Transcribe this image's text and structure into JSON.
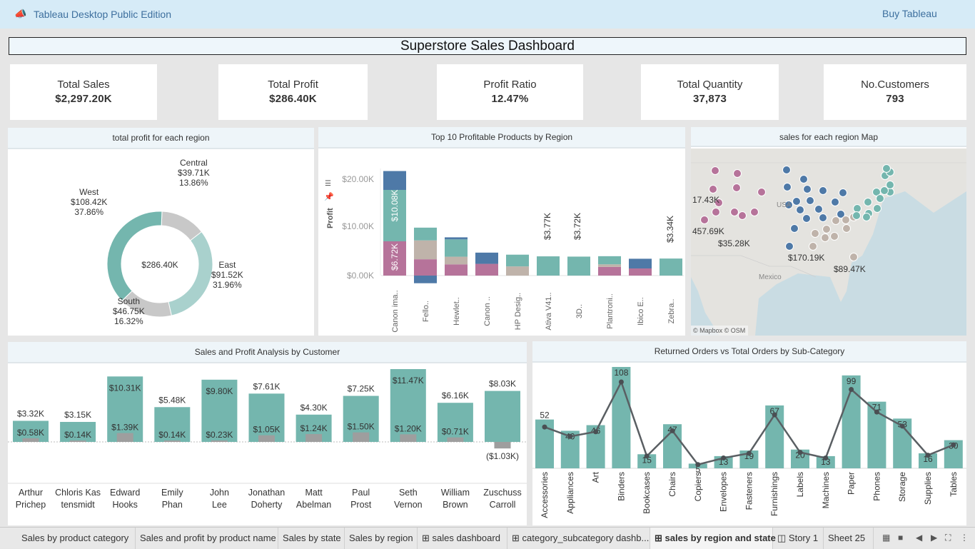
{
  "app": {
    "title": "Tableau Desktop Public Edition",
    "buy_label": "Buy Tableau"
  },
  "dashboard": {
    "title": "Superstore Sales Dashboard"
  },
  "kpis": [
    {
      "title": "Total Sales",
      "value": "$2,297.20K"
    },
    {
      "title": "Total Profit",
      "value": "$286.40K"
    },
    {
      "title": "Profit Ratio",
      "value": "12.47%"
    },
    {
      "title": "Total Quantity",
      "value": "37,873"
    },
    {
      "title": "No.Customers",
      "value": "793"
    }
  ],
  "panels": {
    "donut_title": "total profit for each region",
    "products_title": "Top 10 Profitable Products by Region",
    "map_title": "sales for each region Map",
    "customers_title": "Sales and Profit Analysis by Customer",
    "returns_title": "Returned Orders vs Total Orders by Sub-Category"
  },
  "donut": {
    "center": "$286.40K",
    "regions": [
      {
        "name": "Central",
        "value": "$39.71K",
        "pct": "13.86%"
      },
      {
        "name": "East",
        "value": "$91.52K",
        "pct": "31.96%"
      },
      {
        "name": "South",
        "value": "$46.75K",
        "pct": "16.32%"
      },
      {
        "name": "West",
        "value": "$108.42K",
        "pct": "37.86%"
      }
    ]
  },
  "products": {
    "y_axis": "Profit",
    "ticks": [
      "$20.00K",
      "$10.00K",
      "$0.00K"
    ],
    "names": [
      "Canon ima..",
      "Fello..",
      "Hewlet..",
      "Canon ..",
      "HP Desig..",
      "Ativa V41..",
      "3D..",
      "Plantroni..",
      "Ibico E..",
      "Zebra.."
    ],
    "labels": [
      "$10.08K",
      "$6.72K",
      "$3.77K",
      "$3.72K",
      "$3.34K"
    ]
  },
  "map": {
    "labels": [
      "17.43K",
      "457.69K",
      "$35.28K",
      "$170.19K",
      "$89.47K"
    ],
    "place_usa": "USA",
    "place_mexico": "Mexico",
    "credit": "© Mapbox © OSM"
  },
  "customers": {
    "names": [
      "Arthur Prichep",
      "Chloris Kas tensmidt",
      "Edward Hooks",
      "Emily Phan",
      "John Lee",
      "Jonathan Doherty",
      "Matt Abelman",
      "Paul Prost",
      "Seth Vernon",
      "William Brown",
      "Zuschuss Carroll"
    ],
    "sales_labels": [
      "$3.32K",
      "$3.15K",
      "$10.31K",
      "$5.48K",
      "$9.80K",
      "$7.61K",
      "$4.30K",
      "$7.25K",
      "$11.47K",
      "$6.16K",
      "$8.03K"
    ],
    "profit_labels": [
      "$0.58K",
      "$0.14K",
      "$1.39K",
      "$0.14K",
      "$0.23K",
      "$1.05K",
      "$1.24K",
      "$1.50K",
      "$1.20K",
      "$0.71K",
      "($1.03K)"
    ]
  },
  "returns": {
    "categories": [
      "Accessories",
      "Appliances",
      "Art",
      "Binders",
      "Bookcases",
      "Chairs",
      "Copiers",
      "Envelopes",
      "Fasteners",
      "Furnishings",
      "Labels",
      "Machines",
      "Paper",
      "Phones",
      "Storage",
      "Supplies",
      "Tables"
    ],
    "labels": [
      "52",
      "40",
      "46",
      "108",
      "15",
      "47",
      "5",
      "13",
      "19",
      "67",
      "20",
      "13",
      "99",
      "71",
      "53",
      "16",
      "30"
    ]
  },
  "tabs": [
    "Sales by product category",
    "Sales and profit by product name",
    "Sales by state",
    "Sales by region",
    "sales dashboard",
    "category_subcategory dashb...",
    "sales by region and state",
    "Story 1",
    "Sheet 25"
  ],
  "chart_data": [
    {
      "type": "pie",
      "title": "total profit for each region",
      "categories": [
        "Central",
        "East",
        "South",
        "West"
      ],
      "values": [
        39.71,
        91.52,
        46.75,
        108.42
      ],
      "percent": [
        13.86,
        31.96,
        16.32,
        37.86
      ],
      "total": 286.4,
      "unit": "$K"
    },
    {
      "type": "bar",
      "title": "Top 10 Profitable Products by Region",
      "ylabel": "Profit",
      "ylim": [
        -1.5,
        21
      ],
      "categories": [
        "Canon ima..",
        "Fello..",
        "Hewlet..",
        "Canon ..",
        "HP Desig..",
        "Ativa V41..",
        "3D..",
        "Plantroni..",
        "Ibico E..",
        "Zebra.."
      ],
      "series": [
        {
          "name": "Central",
          "color": "#b6739a",
          "values": [
            6.72,
            3.2,
            2.2,
            2.3,
            0,
            0,
            0,
            1.7,
            1.4,
            0
          ]
        },
        {
          "name": "South",
          "color": "#bfb3aa",
          "values": [
            0,
            3.7,
            1.5,
            0,
            1.8,
            0,
            0,
            0.5,
            0,
            0
          ]
        },
        {
          "name": "West",
          "color": "#74b6ae",
          "values": [
            10.08,
            2.5,
            3.4,
            0,
            2.3,
            3.77,
            3.72,
            1.6,
            0,
            3.34
          ]
        },
        {
          "name": "East",
          "color": "#4e79a7",
          "values": [
            3.7,
            -1.5,
            0.4,
            2.2,
            0,
            0,
            0,
            0,
            1.9,
            0
          ]
        }
      ]
    },
    {
      "type": "bar",
      "title": "Sales and Profit Analysis by Customer",
      "categories": [
        "Arthur Prichep",
        "Chloris Kas tensmidt",
        "Edward Hooks",
        "Emily Phan",
        "John Lee",
        "Jonathan Doherty",
        "Matt Abelman",
        "Paul Prost",
        "Seth Vernon",
        "William Brown",
        "Zuschuss Carroll"
      ],
      "series": [
        {
          "name": "Sales",
          "values": [
            3.32,
            3.15,
            10.31,
            5.48,
            9.8,
            7.61,
            4.3,
            7.25,
            11.47,
            6.16,
            8.03
          ]
        },
        {
          "name": "Profit",
          "values": [
            0.58,
            0.14,
            1.39,
            0.14,
            0.23,
            1.05,
            1.24,
            1.5,
            1.2,
            0.71,
            -1.03
          ]
        }
      ],
      "unit": "$K"
    },
    {
      "type": "bar",
      "title": "Returned Orders vs Total Orders by Sub-Category",
      "categories": [
        "Accessories",
        "Appliances",
        "Art",
        "Binders",
        "Bookcases",
        "Chairs",
        "Copiers",
        "Envelopes",
        "Fasteners",
        "Furnishings",
        "Labels",
        "Machines",
        "Paper",
        "Phones",
        "Storage",
        "Supplies",
        "Tables"
      ],
      "series": [
        {
          "name": "Total Orders",
          "values": [
            52,
            40,
            46,
            108,
            15,
            47,
            5,
            13,
            19,
            67,
            20,
            13,
            99,
            71,
            53,
            16,
            30
          ]
        },
        {
          "name": "Returned Orders",
          "values": [
            44,
            34,
            39,
            92,
            13,
            40,
            4,
            11,
            16,
            57,
            17,
            11,
            84,
            60,
            45,
            14,
            25
          ]
        }
      ]
    }
  ]
}
